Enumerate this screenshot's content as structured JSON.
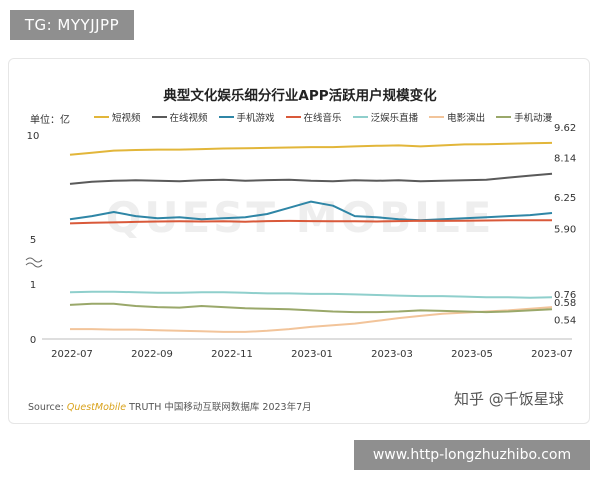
{
  "badge_top": "TG: MYYJJPP",
  "badge_bottom": "www.http-longzhuzhibo.com",
  "watermark_text": "知乎 @千饭星球",
  "source_prefix": "Source: ",
  "source_brand": "QuestMobile",
  "source_suffix": " TRUTH 中国移动互联网数据库 2023年7月",
  "chart_data": {
    "type": "line",
    "title": "典型文化娱乐细分行业APP活跃用户规模变化",
    "unit_label": "单位：亿",
    "xlabel": "",
    "ylabel": "",
    "y_axis_break": true,
    "y_ticks": [
      "10",
      "5",
      "1",
      "0"
    ],
    "x_ticks": [
      "2022-07",
      "2022-09",
      "2022-11",
      "2023-01",
      "2023-03",
      "2023-05",
      "2023-07"
    ],
    "grid": false,
    "legend_position": "top",
    "series": [
      {
        "name": "短视频",
        "color": "#e2b63a",
        "end_label": "9.62",
        "values": [
          9.05,
          9.15,
          9.25,
          9.28,
          9.3,
          9.3,
          9.32,
          9.35,
          9.36,
          9.38,
          9.4,
          9.42,
          9.42,
          9.45,
          9.48,
          9.5,
          9.45,
          9.5,
          9.55,
          9.56,
          9.58,
          9.6,
          9.62
        ]
      },
      {
        "name": "在线视频",
        "color": "#5a5a5a",
        "end_label": "8.14",
        "values": [
          7.65,
          7.75,
          7.8,
          7.82,
          7.8,
          7.78,
          7.82,
          7.85,
          7.8,
          7.83,
          7.85,
          7.8,
          7.78,
          7.82,
          7.8,
          7.82,
          7.78,
          7.8,
          7.82,
          7.85,
          7.95,
          8.05,
          8.14
        ]
      },
      {
        "name": "手机游戏",
        "color": "#2f86a6",
        "end_label": "6.25",
        "values": [
          5.95,
          6.1,
          6.3,
          6.1,
          6.0,
          6.05,
          5.95,
          6.0,
          6.05,
          6.2,
          6.5,
          6.8,
          6.6,
          6.1,
          6.05,
          5.95,
          5.9,
          5.95,
          6.0,
          6.05,
          6.1,
          6.15,
          6.25
        ]
      },
      {
        "name": "在线音乐",
        "color": "#d9593a",
        "end_label": "5.90",
        "values": [
          5.75,
          5.78,
          5.8,
          5.82,
          5.84,
          5.85,
          5.84,
          5.85,
          5.83,
          5.86,
          5.87,
          5.86,
          5.85,
          5.85,
          5.84,
          5.86,
          5.88,
          5.87,
          5.88,
          5.89,
          5.9,
          5.9,
          5.9
        ]
      },
      {
        "name": "泛娱乐直播",
        "color": "#8fcfcc",
        "end_label": "0.76",
        "values": [
          0.85,
          0.86,
          0.86,
          0.85,
          0.84,
          0.84,
          0.85,
          0.85,
          0.84,
          0.83,
          0.83,
          0.82,
          0.82,
          0.81,
          0.8,
          0.79,
          0.78,
          0.78,
          0.77,
          0.76,
          0.76,
          0.75,
          0.76
        ]
      },
      {
        "name": "电影演出",
        "color": "#f2c49a",
        "end_label": "0.58",
        "values": [
          0.18,
          0.18,
          0.17,
          0.17,
          0.16,
          0.15,
          0.14,
          0.13,
          0.13,
          0.15,
          0.18,
          0.22,
          0.25,
          0.28,
          0.33,
          0.38,
          0.42,
          0.46,
          0.48,
          0.5,
          0.52,
          0.55,
          0.58
        ]
      },
      {
        "name": "手机动漫",
        "color": "#9aa86a",
        "end_label": "0.54",
        "values": [
          0.62,
          0.64,
          0.64,
          0.6,
          0.58,
          0.57,
          0.6,
          0.58,
          0.56,
          0.55,
          0.54,
          0.52,
          0.5,
          0.49,
          0.49,
          0.5,
          0.52,
          0.51,
          0.5,
          0.49,
          0.5,
          0.52,
          0.54
        ]
      }
    ]
  }
}
